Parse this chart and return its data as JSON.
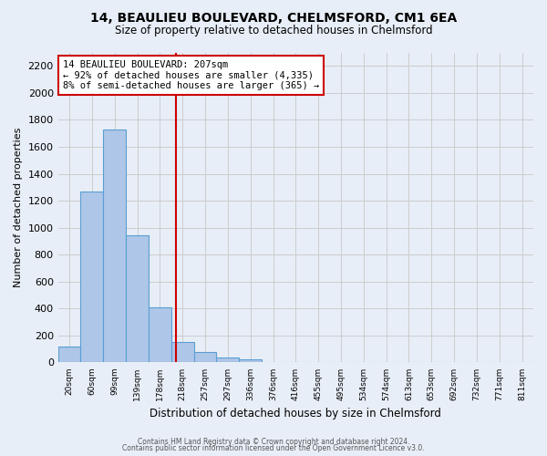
{
  "title_line1": "14, BEAULIEU BOULEVARD, CHELMSFORD, CM1 6EA",
  "title_line2": "Size of property relative to detached houses in Chelmsford",
  "xlabel": "Distribution of detached houses by size in Chelmsford",
  "ylabel": "Number of detached properties",
  "bin_labels": [
    "20sqm",
    "60sqm",
    "99sqm",
    "139sqm",
    "178sqm",
    "218sqm",
    "257sqm",
    "297sqm",
    "336sqm",
    "376sqm",
    "416sqm",
    "455sqm",
    "495sqm",
    "534sqm",
    "574sqm",
    "613sqm",
    "653sqm",
    "692sqm",
    "732sqm",
    "771sqm",
    "811sqm"
  ],
  "bar_values": [
    120,
    1265,
    1730,
    945,
    410,
    150,
    75,
    35,
    20,
    0,
    0,
    0,
    0,
    0,
    0,
    0,
    0,
    0,
    0,
    0,
    0
  ],
  "bar_color": "#aec6e8",
  "bar_edge_color": "#5a9fd4",
  "bin_edges": [
    20,
    60,
    99,
    139,
    178,
    218,
    257,
    297,
    336,
    376,
    416,
    455,
    495,
    534,
    574,
    613,
    653,
    692,
    732,
    771,
    811
  ],
  "vline_value": 207,
  "vline_color": "#cc0000",
  "annotation_title": "14 BEAULIEU BOULEVARD: 207sqm",
  "annotation_line1": "← 92% of detached houses are smaller (4,335)",
  "annotation_line2": "8% of semi-detached houses are larger (365) →",
  "annotation_box_color": "#ffffff",
  "annotation_box_edge": "#cc0000",
  "ylim": [
    0,
    2300
  ],
  "yticks": [
    0,
    200,
    400,
    600,
    800,
    1000,
    1200,
    1400,
    1600,
    1800,
    2000,
    2200
  ],
  "grid_color": "#cccccc",
  "bg_color": "#e8eef7",
  "footer_line1": "Contains HM Land Registry data © Crown copyright and database right 2024.",
  "footer_line2": "Contains public sector information licensed under the Open Government Licence v3.0."
}
